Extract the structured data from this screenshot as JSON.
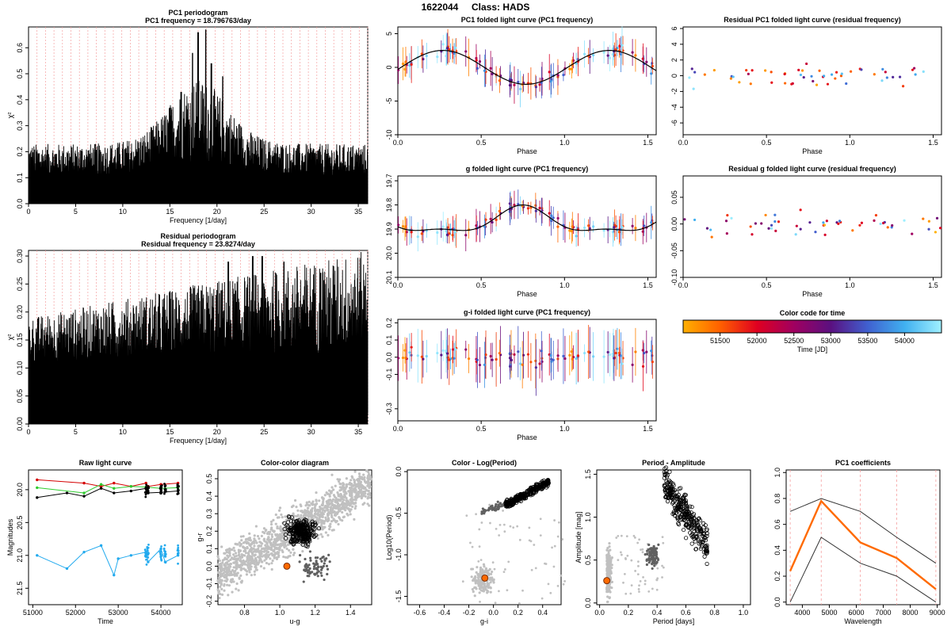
{
  "header": {
    "object_id": "1622044",
    "class_label": "Class: HADS"
  },
  "colors": {
    "series_black": "#000000",
    "series_red": "#d40000",
    "series_green": "#2ecc2e",
    "series_blue": "#22aaee",
    "highlight": "#ff6a00",
    "grey": "#c0c0c0",
    "dark_grey": "#606060",
    "guide_red": "#f5a0a0"
  },
  "chart_data": [
    {
      "id": "pc1_periodogram",
      "type": "line",
      "title": "PC1 periodogram",
      "subtitle": "PC1 frequency = 18.796763/day",
      "xlabel": "Frequency [1/day]",
      "ylabel": "χ²",
      "xlim": [
        0,
        36
      ],
      "ylim": [
        0,
        0.68
      ],
      "xticks": [
        "0",
        "5",
        "10",
        "15",
        "20",
        "25",
        "30",
        "35"
      ],
      "yticks": [
        "0.0",
        "0.1",
        "0.2",
        "0.3",
        "0.4",
        "0.5",
        "0.6"
      ],
      "peaks": [
        {
          "x": 17.4,
          "y": 0.58
        },
        {
          "x": 18.0,
          "y": 0.66
        },
        {
          "x": 18.8,
          "y": 0.67
        },
        {
          "x": 19.4,
          "y": 0.54
        },
        {
          "x": 20.6,
          "y": 0.49
        },
        {
          "x": 16.2,
          "y": 0.43
        },
        {
          "x": 15.0,
          "y": 0.37
        }
      ]
    },
    {
      "id": "resid_periodogram",
      "type": "line",
      "title": "Residual periodogram",
      "subtitle": "Residual frequency = 23.8274/day",
      "xlabel": "Frequency [1/day]",
      "ylabel": "χ²",
      "xlim": [
        0,
        36
      ],
      "ylim": [
        0,
        0.31
      ],
      "xticks": [
        "0",
        "5",
        "10",
        "15",
        "20",
        "25",
        "30",
        "35"
      ],
      "yticks": [
        "0.00",
        "0.05",
        "0.10",
        "0.15",
        "0.20",
        "0.25",
        "0.30"
      ],
      "peaks": [
        {
          "x": 23.8,
          "y": 0.3
        },
        {
          "x": 24.8,
          "y": 0.3
        },
        {
          "x": 21.2,
          "y": 0.29
        },
        {
          "x": 27.1,
          "y": 0.29
        },
        {
          "x": 31.0,
          "y": 0.27
        }
      ]
    },
    {
      "id": "pc1_folded",
      "type": "scatter",
      "title": "PC1 folded light curve (PC1 frequency)",
      "xlabel": "Phase",
      "ylabel": "",
      "xlim": [
        0,
        1.55
      ],
      "ylim": [
        -10,
        6
      ],
      "xticks": [
        "0.0",
        "0.5",
        "1.0",
        "1.5"
      ],
      "yticks": [
        "5",
        "0",
        "-5",
        "-10"
      ],
      "fit_amp": 2.5,
      "fit_offset": 0
    },
    {
      "id": "resid_pc1",
      "type": "scatter",
      "title": "Residual PC1 folded light curve (residual frequency)",
      "xlabel": "Phase",
      "ylabel": "",
      "xlim": [
        0,
        1.55
      ],
      "ylim": [
        -7.5,
        6.2
      ],
      "xticks": [
        "0.0",
        "0.5",
        "1.0",
        "1.5"
      ],
      "yticks": [
        "6",
        "4",
        "2",
        "0",
        "-2",
        "-4",
        "-6"
      ]
    },
    {
      "id": "g_folded",
      "type": "scatter",
      "title": "g folded light curve (PC1 frequency)",
      "xlabel": "Phase",
      "ylabel": "",
      "xlim": [
        0,
        1.55
      ],
      "ylim": [
        19.68,
        20.1
      ],
      "inverted": true,
      "xticks": [
        "0.0",
        "0.5",
        "1.0",
        "1.5"
      ],
      "yticks": [
        "19.7",
        "19.8",
        "19.9",
        "20.0",
        "20.1"
      ]
    },
    {
      "id": "resid_g",
      "type": "scatter",
      "title": "Residual g folded light curve (residual frequency)",
      "xlabel": "Phase",
      "ylabel": "",
      "xlim": [
        0,
        1.55
      ],
      "ylim": [
        -0.1,
        0.09
      ],
      "xticks": [
        "0.0",
        "0.5",
        "1.0",
        "1.5"
      ],
      "yticks": [
        "0.05",
        "0.00",
        "-0.05",
        "-0.10"
      ]
    },
    {
      "id": "gi_folded",
      "type": "scatter",
      "title": "g-i folded light curve (PC1 frequency)",
      "xlabel": "Phase",
      "ylabel": "",
      "xlim": [
        0,
        1.55
      ],
      "ylim": [
        -0.37,
        0.22
      ],
      "xticks": [
        "0.0",
        "0.5",
        "1.0",
        "1.5"
      ],
      "yticks": [
        "0.2",
        "0.1",
        "0.0",
        "-0.1",
        "-0.3"
      ]
    },
    {
      "id": "colorbar",
      "type": "heatmap",
      "title": "Color code for time",
      "xlabel": "Time [JD]",
      "xlim": [
        51000,
        54500
      ],
      "ticks": [
        "51500",
        "52000",
        "52500",
        "53000",
        "53500",
        "54000"
      ],
      "stops": [
        "#ffb000",
        "#ff6000",
        "#e00020",
        "#a00060",
        "#5a1080",
        "#4060d0",
        "#40b0f0",
        "#a0f0ff"
      ]
    },
    {
      "id": "raw_lc",
      "type": "line",
      "title": "Raw light curve",
      "xlabel": "Time",
      "ylabel": "Magnitudes",
      "xlim": [
        50900,
        54500
      ],
      "ylim": [
        21.75,
        19.7
      ],
      "xticks": [
        "51000",
        "52000",
        "53000",
        "54000"
      ],
      "yticks": [
        "20.0",
        "20.5",
        "21.0",
        "21.5"
      ],
      "series": [
        {
          "name": "red",
          "x": [
            51100,
            52200,
            52600,
            52900,
            53300,
            53650,
            53700,
            54000,
            54400
          ],
          "y": [
            19.85,
            19.9,
            19.95,
            19.9,
            19.95,
            19.9,
            19.95,
            19.92,
            19.9
          ]
        },
        {
          "name": "green",
          "x": [
            51100,
            52200,
            52600,
            52900,
            53300,
            53650,
            54000,
            54400
          ],
          "y": [
            19.97,
            20.05,
            19.92,
            19.98,
            19.95,
            19.96,
            19.98,
            19.97
          ]
        },
        {
          "name": "black",
          "x": [
            51100,
            51800,
            52200,
            52600,
            52900,
            53300,
            53650,
            53700,
            54000,
            54400
          ],
          "y": [
            20.12,
            20.05,
            20.1,
            19.98,
            20.05,
            20.02,
            19.98,
            20.05,
            20.04,
            20.02
          ]
        },
        {
          "name": "blue",
          "x": [
            51100,
            51800,
            52200,
            52600,
            52900,
            53000,
            53300,
            53650,
            53700,
            54000,
            54100,
            54400
          ],
          "y": [
            21.0,
            21.2,
            20.95,
            20.85,
            21.3,
            21.05,
            21.0,
            20.95,
            21.1,
            20.9,
            21.1,
            21.0
          ]
        }
      ]
    },
    {
      "id": "color_color",
      "type": "scatter",
      "title": "Color-color diagram",
      "xlabel": "u-g",
      "ylabel": "g-r",
      "xlim": [
        0.65,
        1.52
      ],
      "ylim": [
        -0.22,
        0.55
      ],
      "xticks": [
        "0.8",
        "1.0",
        "1.2",
        "1.4"
      ],
      "yticks": [
        "-0.2",
        "-0.1",
        "0.0",
        "0.1",
        "0.2",
        "0.3",
        "0.4",
        "0.5"
      ],
      "highlight": {
        "x": 1.04,
        "y": 0.0
      }
    },
    {
      "id": "color_logperiod",
      "type": "scatter",
      "title": "Color - Log(Period)",
      "xlabel": "g-i",
      "ylabel": "Log10(Period)",
      "xlim": [
        -0.7,
        0.55
      ],
      "ylim": [
        -1.6,
        0.02
      ],
      "xticks": [
        "-0.6",
        "-0.4",
        "-0.2",
        "0.0",
        "0.2",
        "0.4"
      ],
      "yticks": [
        "0.0",
        "-0.5",
        "-1.0",
        "-1.5"
      ],
      "highlight": {
        "x": -0.07,
        "y": -1.28
      }
    },
    {
      "id": "period_amplitude",
      "type": "scatter",
      "title": "Period - Amplitude",
      "xlabel": "Period [days]",
      "ylabel": "Amplitude [mag]",
      "xlim": [
        -0.02,
        1.05
      ],
      "ylim": [
        -0.02,
        1.55
      ],
      "xticks": [
        "0.0",
        "0.2",
        "0.4",
        "0.6",
        "0.8",
        "1.0"
      ],
      "yticks": [
        "0.0",
        "0.5",
        "1.0",
        "1.5"
      ],
      "highlight": {
        "x": 0.05,
        "y": 0.26
      }
    },
    {
      "id": "pc1_coefficients",
      "type": "line",
      "title": "PC1 coefficients",
      "xlabel": "Wavelength",
      "ylabel": "",
      "xlim": [
        3400,
        9100
      ],
      "ylim": [
        -0.02,
        1.02
      ],
      "xticks": [
        "4000",
        "5000",
        "6000",
        "7000",
        "8000",
        "9000"
      ],
      "yticks": [
        "0.0",
        "0.2",
        "0.4",
        "0.6",
        "0.8",
        "1.0"
      ],
      "x": [
        3550,
        4700,
        6150,
        7500,
        8950
      ],
      "series": [
        {
          "name": "upper",
          "values": [
            0.7,
            0.8,
            0.7,
            0.5,
            0.3
          ]
        },
        {
          "name": "pc1",
          "values": [
            0.24,
            0.78,
            0.46,
            0.34,
            0.1
          ]
        },
        {
          "name": "lower",
          "values": [
            0.0,
            0.5,
            0.3,
            0.2,
            0.0
          ]
        }
      ]
    }
  ]
}
